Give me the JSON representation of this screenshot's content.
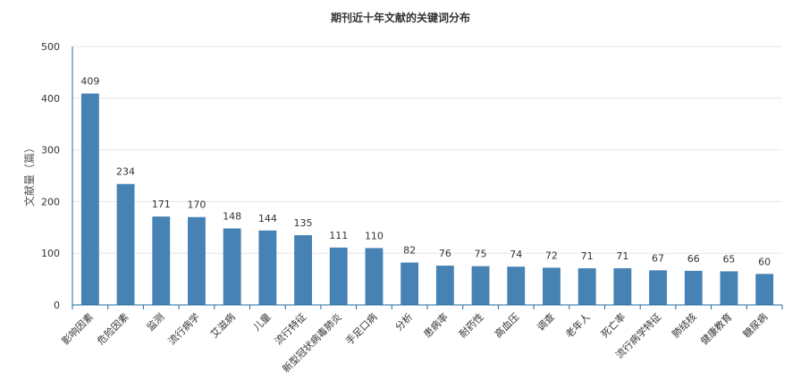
{
  "chart_data": {
    "type": "bar",
    "title": "期刊近十年文献的关键词分布",
    "xlabel": "",
    "ylabel": "文献量（篇）",
    "ylim": [
      0,
      500
    ],
    "yticks": [
      0,
      100,
      200,
      300,
      400,
      500
    ],
    "grid": true,
    "bar_color": "#4682b4",
    "categories": [
      "影响因素",
      "危险因素",
      "监测",
      "流行病学",
      "艾滋病",
      "儿童",
      "流行特征",
      "新型冠状病毒肺炎",
      "手足口病",
      "分析",
      "患病率",
      "耐药性",
      "高血压",
      "调查",
      "老年人",
      "死亡率",
      "流行病学特征",
      "肺结核",
      "健康教育",
      "糖尿病"
    ],
    "values": [
      409,
      234,
      171,
      170,
      148,
      144,
      135,
      111,
      110,
      82,
      76,
      75,
      74,
      72,
      71,
      71,
      67,
      66,
      65,
      60
    ]
  }
}
